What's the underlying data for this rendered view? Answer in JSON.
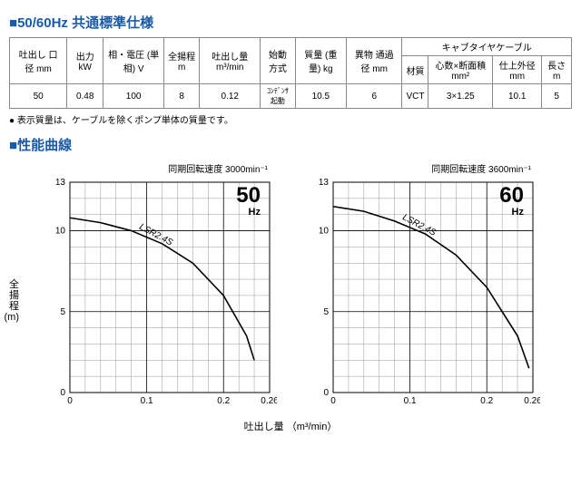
{
  "title_spec": "50/60Hz 共通標準仕様",
  "table": {
    "headers_row1": [
      "吐出し\n口 径\nmm",
      "出力\nkW",
      "相・電圧\n(単相)\nV",
      "全揚程\nm",
      "吐出し量\nm³/min",
      "始動方式",
      "質量\n(重量)\nkg",
      "異物\n通過径\nmm",
      "キャブタイヤケーブル"
    ],
    "headers_row2": [
      "材質",
      "心数×断面積\nmm²",
      "仕上外径\nmm",
      "長さ\nm"
    ],
    "row": [
      "50",
      "0.48",
      "100",
      "8",
      "0.12",
      "ｺﾝﾃﾞﾝｻ起動",
      "10.5",
      "6",
      "VCT",
      "3×1.25",
      "10.1",
      "5"
    ]
  },
  "note": "● 表示質量は、ケーブルを除くポンプ単体の質量です。",
  "title_curve": "性能曲線",
  "y_axis_label": "全\n揚\n程\n(m)",
  "x_axis_label": "吐出し量 （m³/min）",
  "chart_common": {
    "curve_label": "LSR2.4S",
    "xlim": [
      0,
      0.26
    ],
    "ylim": [
      0,
      13
    ],
    "xticks": [
      0,
      0.1,
      0.2,
      0.26
    ],
    "yticks": [
      0,
      5,
      10,
      13
    ],
    "x_minor": [
      0.02,
      0.04,
      0.06,
      0.08,
      0.12,
      0.14,
      0.16,
      0.18,
      0.22,
      0.24
    ],
    "y_minor": [
      1,
      2,
      3,
      4,
      6,
      7,
      8,
      9,
      11,
      12
    ],
    "grid_color": "#999",
    "line_color": "#000",
    "background": "#fff",
    "line_width": 1.6
  },
  "chart50": {
    "title": "同期回転速度 3000min⁻¹",
    "hz_label": "50",
    "hz_unit": "Hz",
    "points": [
      [
        0,
        10.8
      ],
      [
        0.04,
        10.5
      ],
      [
        0.08,
        10.0
      ],
      [
        0.12,
        9.2
      ],
      [
        0.16,
        8.0
      ],
      [
        0.2,
        6.0
      ],
      [
        0.23,
        3.5
      ],
      [
        0.24,
        2.0
      ]
    ]
  },
  "chart60": {
    "title": "同期回転速度 3600min⁻¹",
    "hz_label": "60",
    "hz_unit": "Hz",
    "points": [
      [
        0,
        11.5
      ],
      [
        0.04,
        11.2
      ],
      [
        0.08,
        10.6
      ],
      [
        0.12,
        9.8
      ],
      [
        0.16,
        8.5
      ],
      [
        0.2,
        6.5
      ],
      [
        0.24,
        3.5
      ],
      [
        0.255,
        1.5
      ]
    ]
  }
}
